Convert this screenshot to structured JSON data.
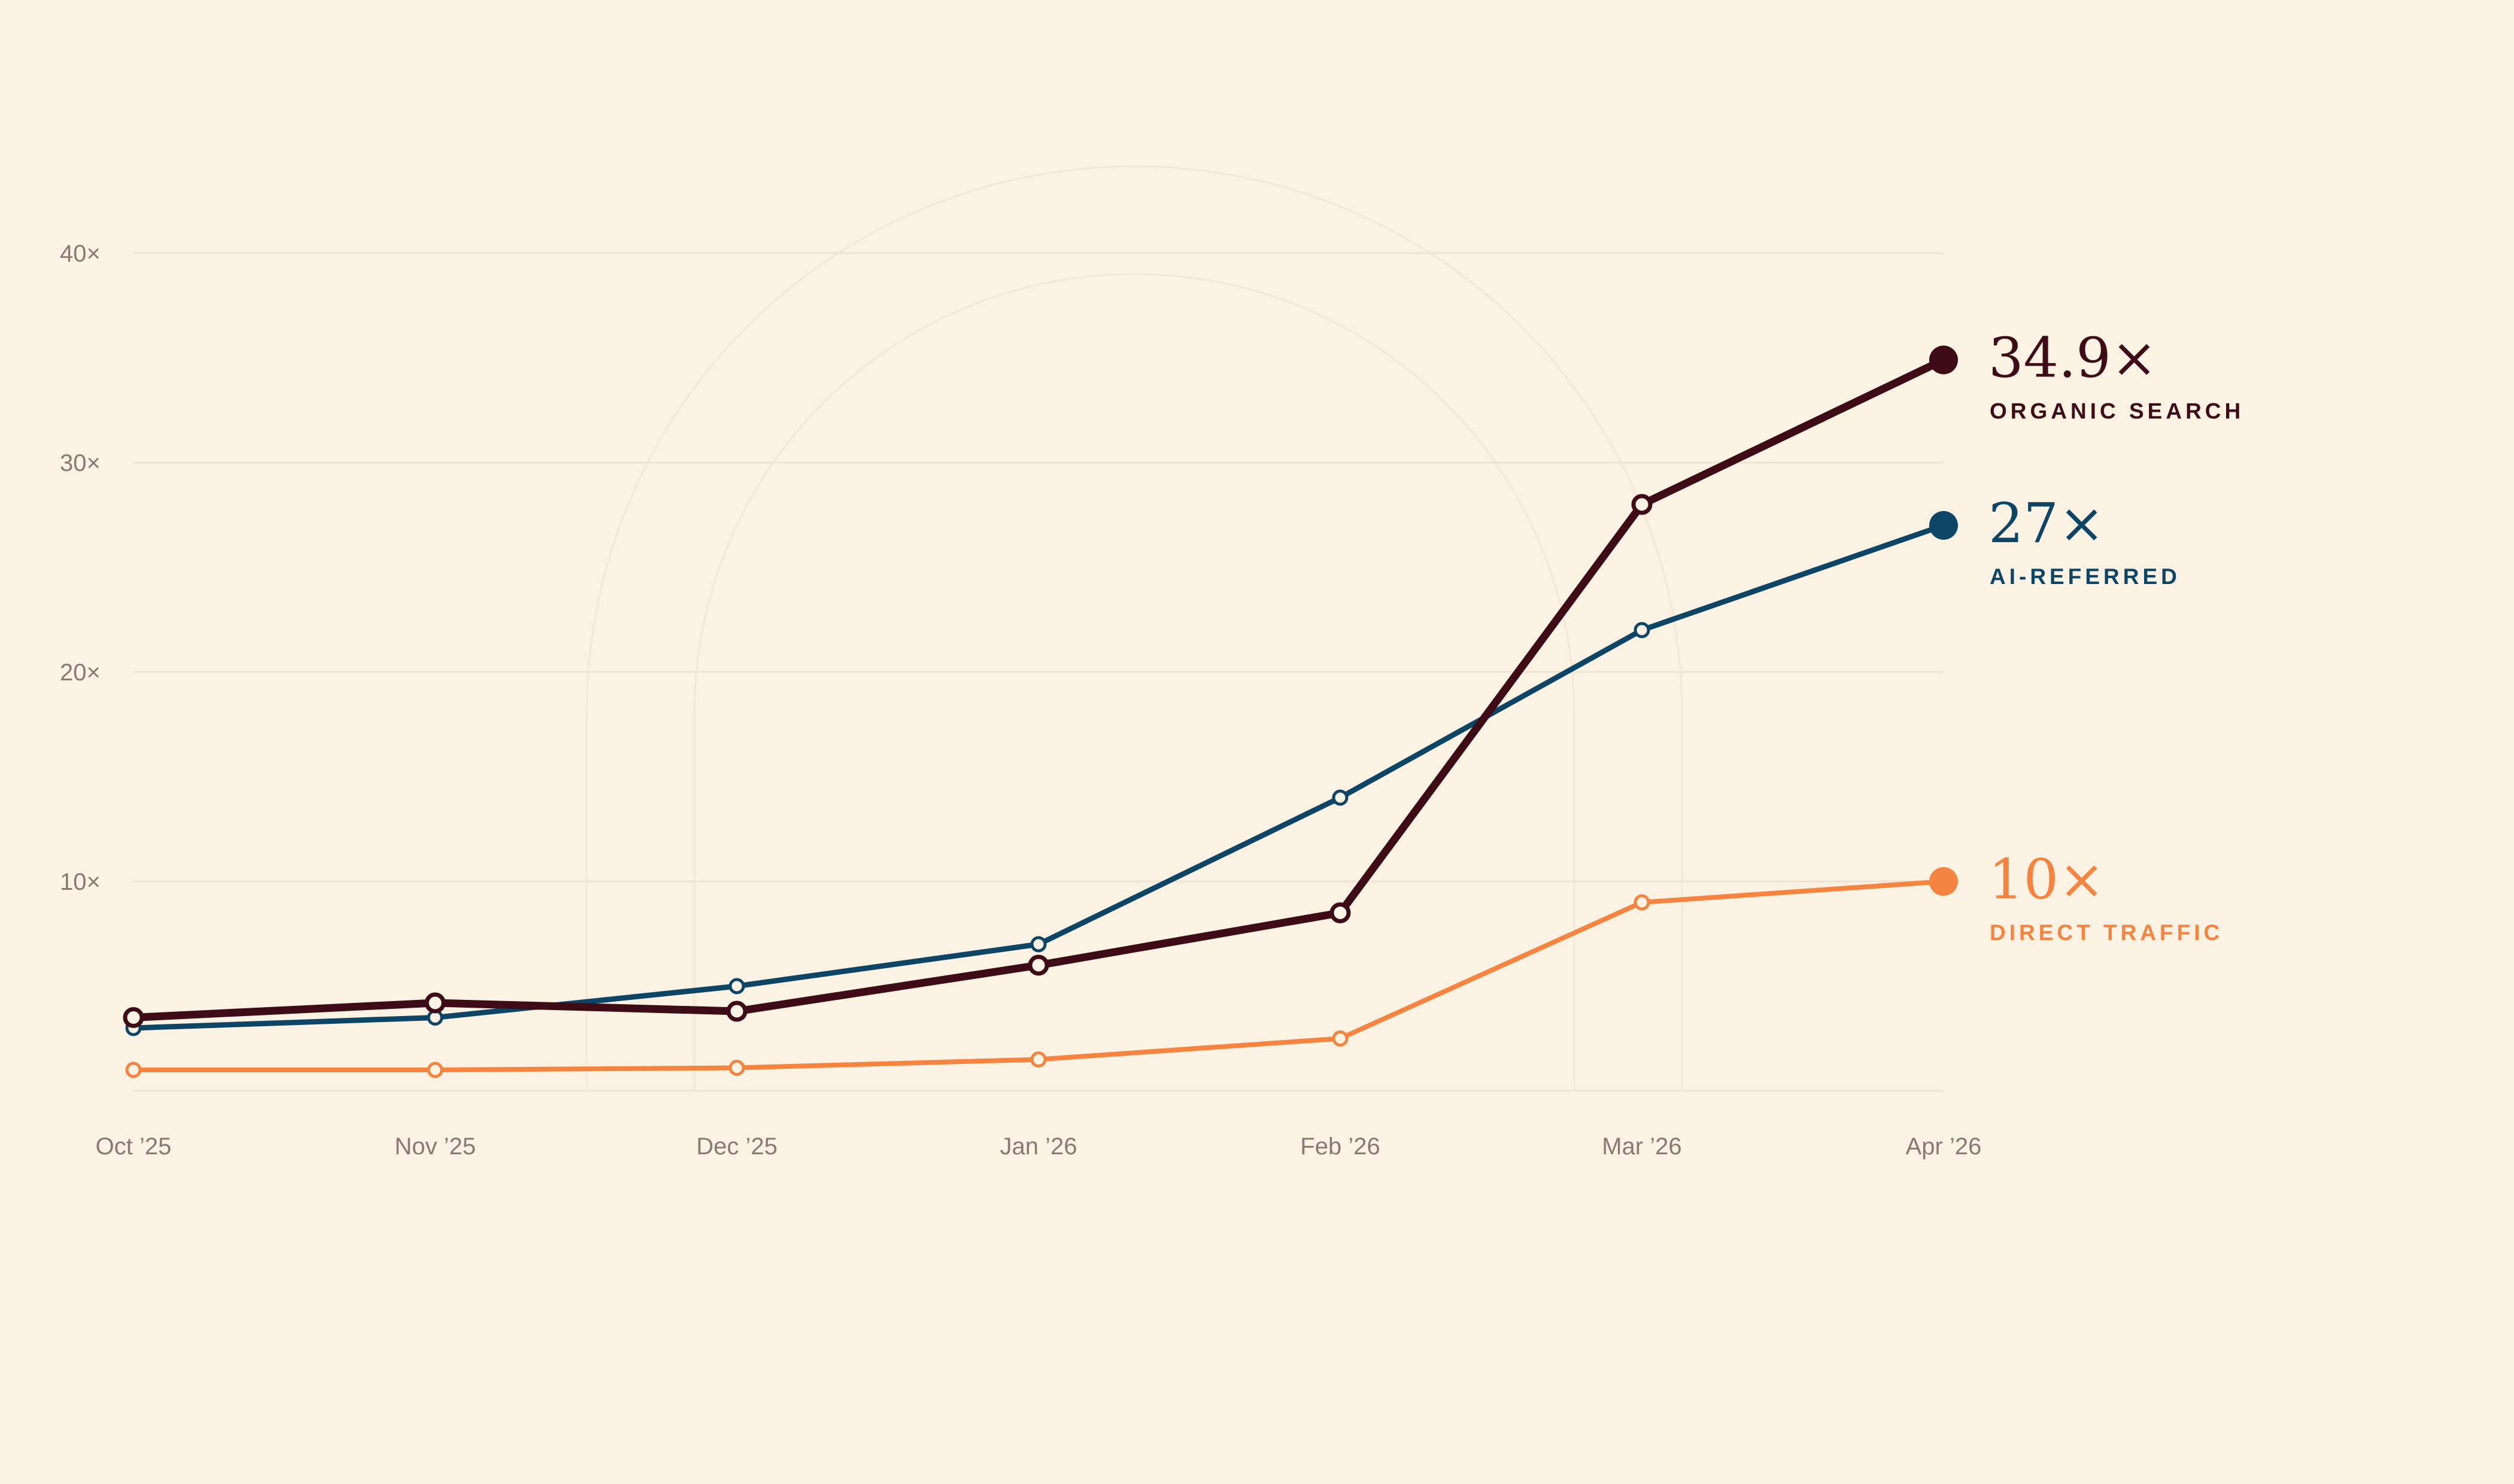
{
  "chart_data": {
    "type": "line",
    "title": "",
    "xlabel": "",
    "ylabel": "",
    "categories": [
      "Oct ’25",
      "Nov ’25",
      "Dec ’25",
      "Jan ’26",
      "Feb ’26",
      "Mar ’26",
      "Apr ’26"
    ],
    "ylim": [
      0,
      40
    ],
    "yticks": [
      10,
      20,
      30,
      40
    ],
    "ytick_labels": [
      "10×",
      "20×",
      "30×",
      "40×"
    ],
    "grid": true,
    "series": [
      {
        "id": "organic",
        "name": "ORGANIC SEARCH",
        "end_label": "34.9×",
        "color": "#3d0c17",
        "values": [
          3.5,
          4.2,
          3.8,
          6.0,
          8.5,
          28.0,
          34.9
        ]
      },
      {
        "id": "ai",
        "name": "AI-REFERRED",
        "end_label": "27×",
        "color": "#0c4566",
        "values": [
          3.0,
          3.5,
          5.0,
          7.0,
          14.0,
          22.0,
          27.0
        ]
      },
      {
        "id": "direct",
        "name": "DIRECT TRAFFIC",
        "end_label": "10×",
        "color": "#f4843f",
        "values": [
          1.0,
          1.0,
          1.1,
          1.5,
          2.5,
          9.0,
          10.0
        ]
      }
    ]
  },
  "colors": {
    "background": "#fbf2e4",
    "grid": "#efe4d4",
    "tick": "#8a7872",
    "marker_fill": "#fbf2e4"
  }
}
